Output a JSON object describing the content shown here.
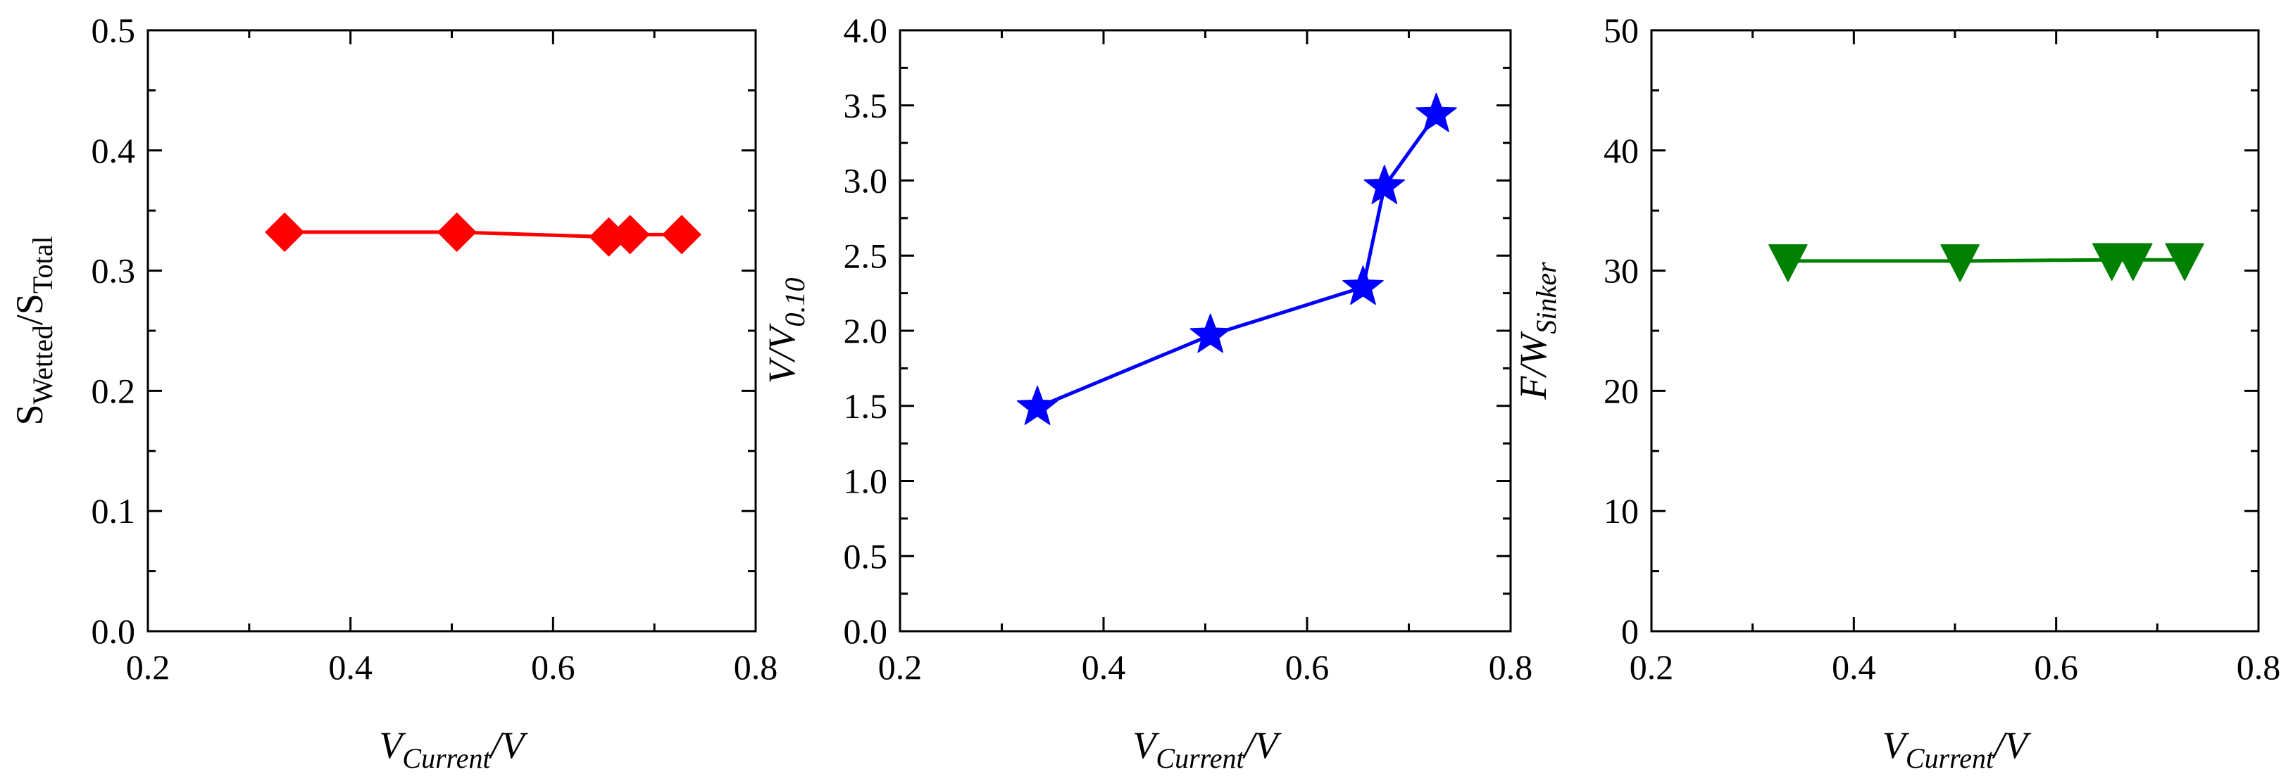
{
  "chart_data": [
    {
      "type": "line",
      "xlabel": {
        "main": "V",
        "sub": "Current",
        "suffix": "/V",
        "italic": true
      },
      "ylabel": {
        "main": "S",
        "sub": "Wetted",
        "mid": "/S",
        "sub2": "Total",
        "italic": false
      },
      "xlim": [
        0.2,
        0.8
      ],
      "ylim": [
        0.0,
        0.5
      ],
      "xticks": [
        0.2,
        0.4,
        0.6,
        0.8
      ],
      "xtick_labels": [
        "0.2",
        "0.4",
        "0.6",
        "0.8"
      ],
      "yticks": [
        0.0,
        0.1,
        0.2,
        0.3,
        0.4,
        0.5
      ],
      "ytick_labels": [
        "0.0",
        "0.1",
        "0.2",
        "0.3",
        "0.4",
        "0.5"
      ],
      "grid": false,
      "series": [
        {
          "color": "#ff0000",
          "marker": "diamond",
          "x": [
            0.335,
            0.505,
            0.655,
            0.676,
            0.727
          ],
          "y": [
            0.332,
            0.332,
            0.328,
            0.33,
            0.33
          ]
        }
      ]
    },
    {
      "type": "line",
      "xlabel": {
        "main": "V",
        "sub": "Current",
        "suffix": "/V",
        "italic": true
      },
      "ylabel": {
        "main": "V/V",
        "sub": "0.10",
        "italic": true
      },
      "xlim": [
        0.2,
        0.8
      ],
      "ylim": [
        0.0,
        4.0
      ],
      "xticks": [
        0.2,
        0.4,
        0.6,
        0.8
      ],
      "xtick_labels": [
        "0.2",
        "0.4",
        "0.6",
        "0.8"
      ],
      "yticks": [
        0.0,
        0.5,
        1.0,
        1.5,
        2.0,
        2.5,
        3.0,
        3.5,
        4.0
      ],
      "ytick_labels": [
        "0.0",
        "0.5",
        "1.0",
        "1.5",
        "2.0",
        "2.5",
        "3.0",
        "3.5",
        "4.0"
      ],
      "grid": false,
      "series": [
        {
          "color": "#0000ff",
          "marker": "star",
          "x": [
            0.335,
            0.505,
            0.655,
            0.676,
            0.727
          ],
          "y": [
            1.49,
            1.97,
            2.29,
            2.96,
            3.44
          ]
        }
      ]
    },
    {
      "type": "line",
      "xlabel": {
        "main": "V",
        "sub": "Current",
        "suffix": "/V",
        "italic": true
      },
      "ylabel": {
        "main": "F/W",
        "sub": "Sinker",
        "italic": true
      },
      "xlim": [
        0.2,
        0.8
      ],
      "ylim": [
        0,
        50
      ],
      "xticks": [
        0.2,
        0.4,
        0.6,
        0.8
      ],
      "xtick_labels": [
        "0.2",
        "0.4",
        "0.6",
        "0.8"
      ],
      "yticks": [
        0,
        10,
        20,
        30,
        40,
        50
      ],
      "ytick_labels": [
        "0",
        "10",
        "20",
        "30",
        "40",
        "50"
      ],
      "grid": false,
      "series": [
        {
          "color": "#008000",
          "marker": "triangle-down",
          "x": [
            0.335,
            0.505,
            0.655,
            0.676,
            0.727
          ],
          "y": [
            30.8,
            30.8,
            30.9,
            30.9,
            30.9
          ]
        }
      ]
    }
  ]
}
